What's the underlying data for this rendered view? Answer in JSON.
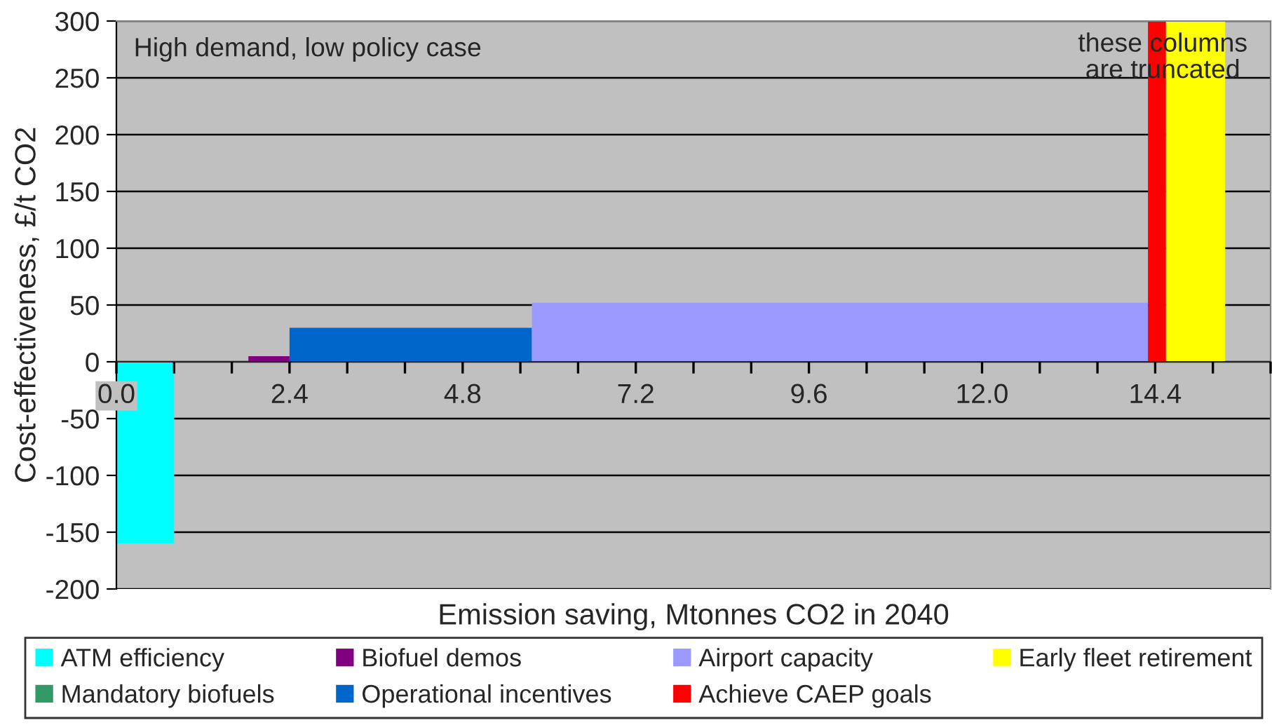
{
  "chart_data": {
    "type": "area",
    "xlabel": "Emission saving, Mtonnes CO2 in 2040",
    "ylabel": "Cost-effectiveness, £/t CO2",
    "annotations": [
      "High demand, low policy case",
      "these columns\nare truncated"
    ],
    "series": [
      {
        "name": "ATM efficiency",
        "color": "#00ffff",
        "x": [
          0,
          0.8
        ],
        "values": [
          -160,
          -160
        ]
      },
      {
        "name": "Mandatory biofuels",
        "color": "#339966"
      },
      {
        "name": "Biofuel demos",
        "color": "#800080",
        "x": [
          1.83,
          2.4
        ],
        "values": [
          5,
          5
        ]
      },
      {
        "name": "Operational incentives",
        "color": "#0066cc",
        "x": [
          2.4,
          5.76
        ],
        "values": [
          30,
          30
        ]
      },
      {
        "name": "Airport capacity",
        "color": "#9999ff",
        "x": [
          5.76,
          14.3
        ],
        "values": [
          52,
          52
        ]
      },
      {
        "name": "Achieve CAEP goals",
        "color": "#ff0000",
        "x": [
          14.3,
          14.55
        ],
        "values": [
          300,
          300
        ]
      },
      {
        "name": "Early fleet retirement",
        "color": "#ffff00",
        "x": [
          14.55,
          15.37
        ],
        "values": [
          300,
          300
        ]
      }
    ],
    "xlim": [
      0,
      16
    ],
    "xticks": [
      {
        "value": 0,
        "label": "0.0"
      },
      {
        "value": 0.8,
        "label": null
      },
      {
        "value": 1.6,
        "label": null
      },
      {
        "value": 2.4,
        "label": "2.4"
      },
      {
        "value": 3.2,
        "label": null
      },
      {
        "value": 4.0,
        "label": null
      },
      {
        "value": 4.8,
        "label": "4.8"
      },
      {
        "value": 5.6,
        "label": null
      },
      {
        "value": 6.4,
        "label": null
      },
      {
        "value": 7.2,
        "label": "7.2"
      },
      {
        "value": 8.0,
        "label": null
      },
      {
        "value": 8.8,
        "label": null
      },
      {
        "value": 9.6,
        "label": "9.6"
      },
      {
        "value": 10.4,
        "label": null
      },
      {
        "value": 11.2,
        "label": null
      },
      {
        "value": 12.0,
        "label": "12.0"
      },
      {
        "value": 12.8,
        "label": null
      },
      {
        "value": 13.6,
        "label": null
      },
      {
        "value": 14.4,
        "label": "14.4"
      },
      {
        "value": 15.2,
        "label": null
      },
      {
        "value": 16.0,
        "label": null
      }
    ],
    "ylim": [
      -200,
      300
    ],
    "yticks": [
      -200,
      -150,
      -100,
      -50,
      0,
      50,
      100,
      150,
      200,
      250,
      300
    ],
    "grid": "y",
    "legend": "bottom"
  }
}
